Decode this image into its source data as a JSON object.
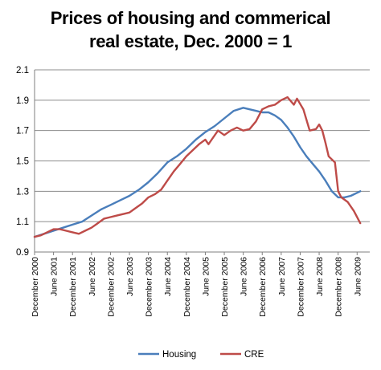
{
  "chart_data": {
    "type": "line",
    "title_lines": [
      "Prices of housing and commerical",
      "real estate, Dec. 2000 = 1"
    ],
    "xlabel": "",
    "ylabel": "",
    "ylim": [
      0.9,
      2.1
    ],
    "yticks": [
      0.9,
      1.1,
      1.3,
      1.5,
      1.7,
      1.9,
      2.1
    ],
    "ytick_labels": [
      "0.9",
      "1.1",
      "1.3",
      "1.5",
      "1.7",
      "1.9",
      "2.1"
    ],
    "xlim": [
      0,
      106
    ],
    "xticks": [
      0,
      6,
      12,
      18,
      24,
      30,
      36,
      42,
      48,
      54,
      60,
      66,
      72,
      78,
      84,
      90,
      96,
      102
    ],
    "xtick_labels": [
      "December 2000",
      "June 2001",
      "December 2001",
      "June 2002",
      "December 2002",
      "June 2003",
      "December 2003",
      "June 2004",
      "December 2004",
      "June 2005",
      "December 2005",
      "June 2006",
      "December 2006",
      "June 2007",
      "December 2007",
      "June 2008",
      "December 2008",
      "June 2009"
    ],
    "x_unit": "months since December 2000",
    "grid": "horizontal",
    "legend_position": "bottom",
    "series": [
      {
        "name": "Housing",
        "color": "#4a7ebb",
        "points": [
          [
            0,
            1.0
          ],
          [
            3,
            1.02
          ],
          [
            6,
            1.04
          ],
          [
            9,
            1.06
          ],
          [
            12,
            1.08
          ],
          [
            15,
            1.1
          ],
          [
            18,
            1.14
          ],
          [
            21,
            1.18
          ],
          [
            24,
            1.21
          ],
          [
            27,
            1.24
          ],
          [
            30,
            1.27
          ],
          [
            33,
            1.31
          ],
          [
            36,
            1.36
          ],
          [
            39,
            1.42
          ],
          [
            42,
            1.49
          ],
          [
            45,
            1.53
          ],
          [
            48,
            1.58
          ],
          [
            51,
            1.64
          ],
          [
            54,
            1.69
          ],
          [
            57,
            1.73
          ],
          [
            60,
            1.78
          ],
          [
            63,
            1.83
          ],
          [
            66,
            1.85
          ],
          [
            68,
            1.84
          ],
          [
            70,
            1.83
          ],
          [
            72,
            1.82
          ],
          [
            74,
            1.82
          ],
          [
            76,
            1.8
          ],
          [
            78,
            1.77
          ],
          [
            80,
            1.72
          ],
          [
            82,
            1.66
          ],
          [
            84,
            1.59
          ],
          [
            86,
            1.53
          ],
          [
            88,
            1.48
          ],
          [
            90,
            1.43
          ],
          [
            92,
            1.37
          ],
          [
            94,
            1.3
          ],
          [
            96,
            1.26
          ],
          [
            98,
            1.26
          ],
          [
            100,
            1.27
          ],
          [
            102,
            1.29
          ],
          [
            103,
            1.3
          ]
        ]
      },
      {
        "name": "CRE",
        "color": "#be4b48",
        "points": [
          [
            0,
            1.0
          ],
          [
            2,
            1.01
          ],
          [
            4,
            1.03
          ],
          [
            6,
            1.05
          ],
          [
            8,
            1.05
          ],
          [
            10,
            1.04
          ],
          [
            12,
            1.03
          ],
          [
            14,
            1.02
          ],
          [
            16,
            1.04
          ],
          [
            18,
            1.06
          ],
          [
            20,
            1.09
          ],
          [
            22,
            1.12
          ],
          [
            24,
            1.13
          ],
          [
            26,
            1.14
          ],
          [
            28,
            1.15
          ],
          [
            30,
            1.16
          ],
          [
            32,
            1.19
          ],
          [
            34,
            1.22
          ],
          [
            36,
            1.26
          ],
          [
            38,
            1.28
          ],
          [
            40,
            1.31
          ],
          [
            42,
            1.37
          ],
          [
            44,
            1.43
          ],
          [
            46,
            1.48
          ],
          [
            48,
            1.53
          ],
          [
            50,
            1.57
          ],
          [
            52,
            1.61
          ],
          [
            54,
            1.64
          ],
          [
            55,
            1.61
          ],
          [
            56,
            1.64
          ],
          [
            58,
            1.7
          ],
          [
            60,
            1.67
          ],
          [
            62,
            1.7
          ],
          [
            64,
            1.72
          ],
          [
            66,
            1.7
          ],
          [
            68,
            1.71
          ],
          [
            70,
            1.76
          ],
          [
            72,
            1.84
          ],
          [
            74,
            1.86
          ],
          [
            76,
            1.87
          ],
          [
            78,
            1.9
          ],
          [
            80,
            1.92
          ],
          [
            82,
            1.87
          ],
          [
            83,
            1.91
          ],
          [
            85,
            1.84
          ],
          [
            87,
            1.7
          ],
          [
            89,
            1.71
          ],
          [
            90,
            1.74
          ],
          [
            91,
            1.7
          ],
          [
            92,
            1.62
          ],
          [
            93,
            1.53
          ],
          [
            95,
            1.49
          ],
          [
            96,
            1.3
          ],
          [
            97,
            1.26
          ],
          [
            99,
            1.23
          ],
          [
            101,
            1.17
          ],
          [
            103,
            1.09
          ]
        ]
      }
    ]
  }
}
